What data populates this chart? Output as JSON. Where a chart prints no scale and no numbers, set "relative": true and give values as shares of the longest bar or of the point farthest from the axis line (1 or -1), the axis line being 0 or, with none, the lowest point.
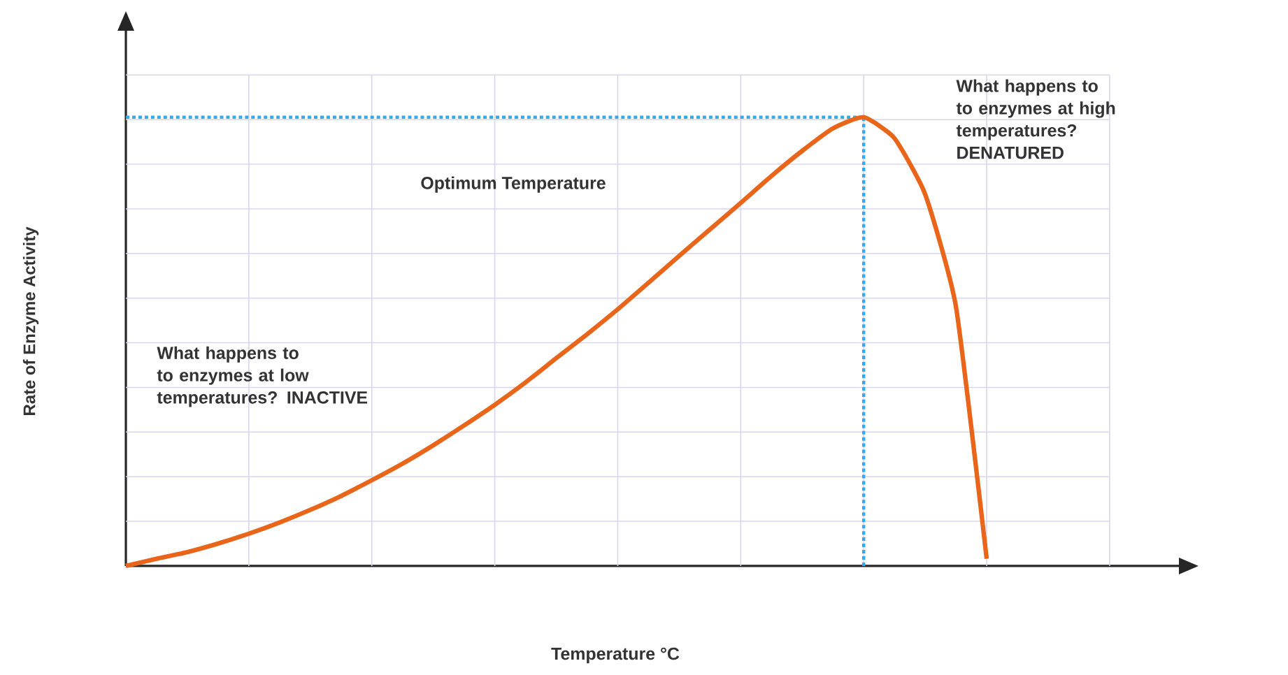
{
  "chart_data": {
    "type": "line",
    "relative": true,
    "xlabel": "Temperature °C",
    "ylabel": "Rate of Enzyme Activity",
    "categories": [
      null,
      null,
      null,
      null,
      null,
      null,
      null,
      null,
      null,
      null,
      null,
      null,
      null,
      null,
      null,
      null,
      null,
      null,
      null,
      null,
      null,
      null,
      null,
      null,
      null,
      null,
      null,
      null,
      null
    ],
    "series": [
      {
        "color": "#e8651a",
        "values": [
          0,
          0.016,
          0.031,
          0.05,
          0.072,
          0.097,
          0.125,
          0.156,
          0.191,
          0.228,
          0.269,
          0.313,
          0.359,
          0.409,
          0.463,
          0.516,
          0.572,
          0.631,
          0.691,
          0.75,
          0.809,
          0.869,
          0.925,
          0.975,
          1.0,
          0.953,
          0.828,
          0.578,
          0.016
        ]
      }
    ],
    "ref_lines": [
      {
        "axis": "y",
        "value": 1.0,
        "color": "#33aaee",
        "line_style": "dotted"
      }
    ],
    "annotations": [
      "What happens to to enzymes at high temperatures? DENATURED",
      "Optimum Temperature",
      "What happens to to enzymes at low temperatures? INACTIVE"
    ],
    "grid": true
  }
}
